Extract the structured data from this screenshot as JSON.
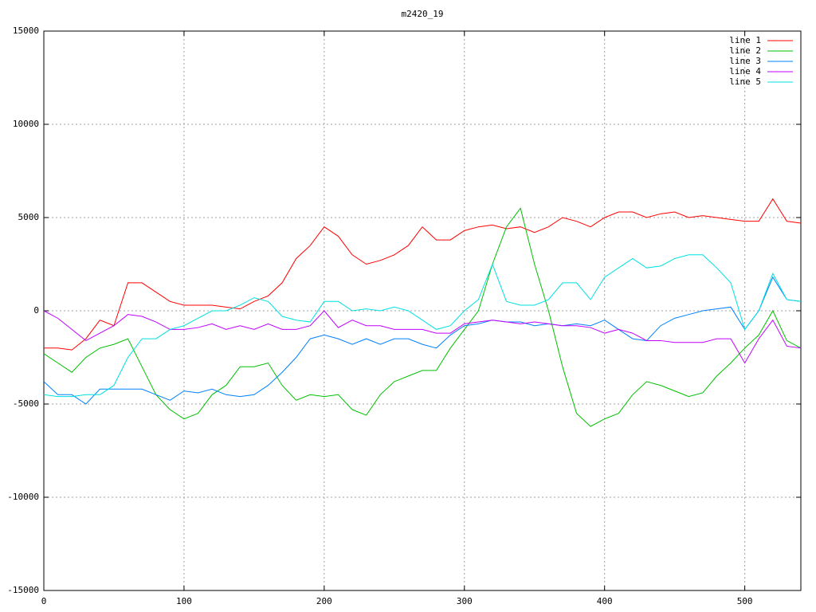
{
  "chart_data": {
    "type": "line",
    "title": "m2420_19",
    "x": [
      0,
      10,
      20,
      30,
      40,
      50,
      60,
      70,
      80,
      90,
      100,
      110,
      120,
      130,
      140,
      150,
      160,
      170,
      180,
      190,
      200,
      210,
      220,
      230,
      240,
      250,
      260,
      270,
      280,
      290,
      300,
      310,
      320,
      330,
      340,
      350,
      360,
      370,
      380,
      390,
      400,
      410,
      420,
      430,
      440,
      450,
      460,
      470,
      480,
      490,
      500,
      510,
      520,
      530,
      540
    ],
    "series": [
      {
        "name": "line 1",
        "color": "#ff0000",
        "values": [
          -2000,
          -2000,
          -2100,
          -1500,
          -500,
          -800,
          1500,
          1500,
          1000,
          500,
          300,
          300,
          300,
          200,
          100,
          500,
          800,
          1500,
          2800,
          3500,
          4500,
          4000,
          3000,
          2500,
          2700,
          3000,
          3500,
          4500,
          3800,
          3800,
          4300,
          4500,
          4600,
          4400,
          4500,
          4200,
          4500,
          5000,
          4800,
          4500,
          5000,
          5300,
          5300,
          5000,
          5200,
          5300,
          5000,
          5100,
          5000,
          4900,
          4800,
          4800,
          6000,
          4800,
          4700
        ]
      },
      {
        "name": "line 2",
        "color": "#00c000",
        "values": [
          -2300,
          -2800,
          -3300,
          -2500,
          -2000,
          -1800,
          -1500,
          -3000,
          -4500,
          -5300,
          -5800,
          -5500,
          -4500,
          -4000,
          -3000,
          -3000,
          -2800,
          -4000,
          -4800,
          -4500,
          -4600,
          -4500,
          -5300,
          -5600,
          -4500,
          -3800,
          -3500,
          -3200,
          -3200,
          -2000,
          -1000,
          0,
          2500,
          4500,
          5500,
          2500,
          0,
          -3000,
          -5500,
          -6200,
          -5800,
          -5500,
          -4500,
          -3800,
          -4000,
          -4300,
          -4600,
          -4400,
          -3500,
          -2800,
          -2000,
          -1300,
          0,
          -1600,
          -2000
        ]
      },
      {
        "name": "line 3",
        "color": "#0080ff",
        "values": [
          -3800,
          -4500,
          -4500,
          -5000,
          -4200,
          -4200,
          -4200,
          -4200,
          -4500,
          -4800,
          -4300,
          -4400,
          -4200,
          -4500,
          -4600,
          -4500,
          -4000,
          -3300,
          -2500,
          -1500,
          -1300,
          -1500,
          -1800,
          -1500,
          -1800,
          -1500,
          -1500,
          -1800,
          -2000,
          -1300,
          -800,
          -700,
          -500,
          -600,
          -600,
          -800,
          -700,
          -800,
          -700,
          -800,
          -500,
          -1000,
          -1500,
          -1600,
          -800,
          -400,
          -200,
          0,
          100,
          200,
          -1000,
          0,
          1800,
          600,
          500
        ]
      },
      {
        "name": "line 4",
        "color": "#c000ff",
        "values": [
          0,
          -400,
          -1000,
          -1600,
          -1200,
          -800,
          -200,
          -300,
          -600,
          -1000,
          -1000,
          -900,
          -700,
          -1000,
          -800,
          -1000,
          -700,
          -1000,
          -1000,
          -800,
          0,
          -900,
          -500,
          -800,
          -800,
          -1000,
          -1000,
          -1000,
          -1200,
          -1200,
          -700,
          -600,
          -500,
          -600,
          -700,
          -600,
          -700,
          -800,
          -800,
          -900,
          -1200,
          -1000,
          -1200,
          -1600,
          -1600,
          -1700,
          -1700,
          -1700,
          -1500,
          -1500,
          -2800,
          -1500,
          -500,
          -1900,
          -2000
        ]
      },
      {
        "name": "line 5",
        "color": "#00e0e0",
        "values": [
          -4500,
          -4600,
          -4600,
          -4500,
          -4500,
          -4000,
          -2500,
          -1500,
          -1500,
          -1000,
          -800,
          -400,
          0,
          0,
          300,
          700,
          500,
          -300,
          -500,
          -600,
          500,
          500,
          0,
          100,
          0,
          200,
          0,
          -500,
          -1000,
          -800,
          0,
          600,
          2500,
          500,
          300,
          300,
          600,
          1500,
          1500,
          600,
          1800,
          2300,
          2800,
          2300,
          2400,
          2800,
          3000,
          3000,
          2300,
          1500,
          -1000,
          0,
          2000,
          600,
          500
        ]
      }
    ],
    "xlim": [
      0,
      540
    ],
    "ylim": [
      -15000,
      15000
    ],
    "xticks": [
      0,
      100,
      200,
      300,
      400,
      500
    ],
    "yticks": [
      -15000,
      -10000,
      -5000,
      0,
      5000,
      10000,
      15000
    ],
    "grid": true,
    "legend": "top-right"
  }
}
